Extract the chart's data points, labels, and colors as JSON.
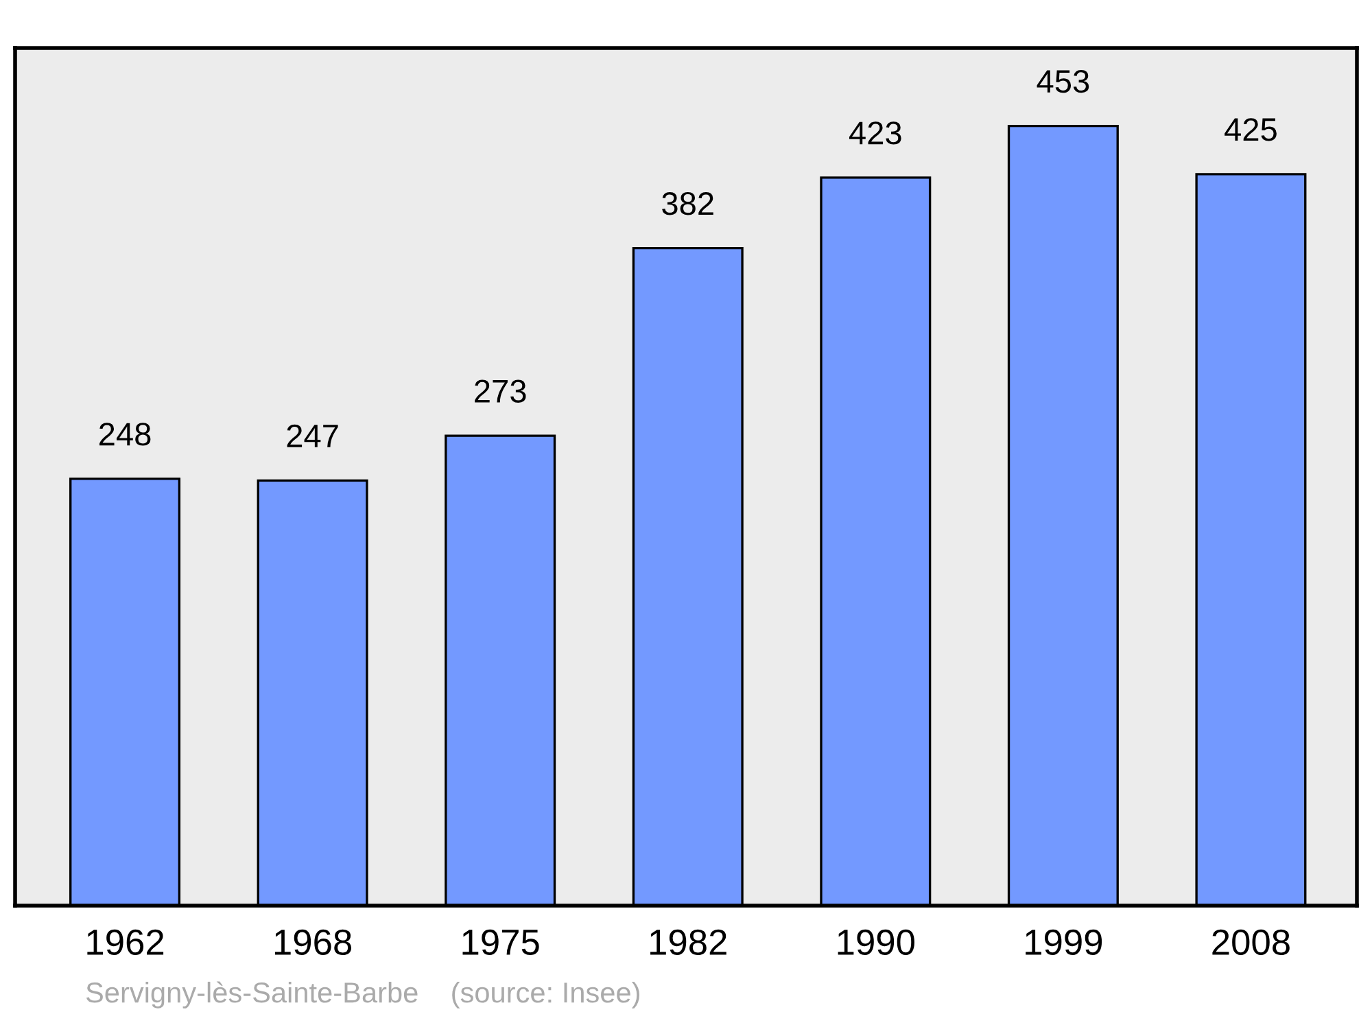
{
  "chart_data": {
    "type": "bar",
    "categories": [
      "1962",
      "1968",
      "1975",
      "1982",
      "1990",
      "1999",
      "2008"
    ],
    "values": [
      248,
      247,
      273,
      382,
      423,
      453,
      425
    ],
    "color": "#7399ff",
    "data_labels": true,
    "grid": false,
    "legend": false,
    "annotations": [
      "Servigny-lès-Sainte-Barbe    (source: Insee)"
    ]
  }
}
